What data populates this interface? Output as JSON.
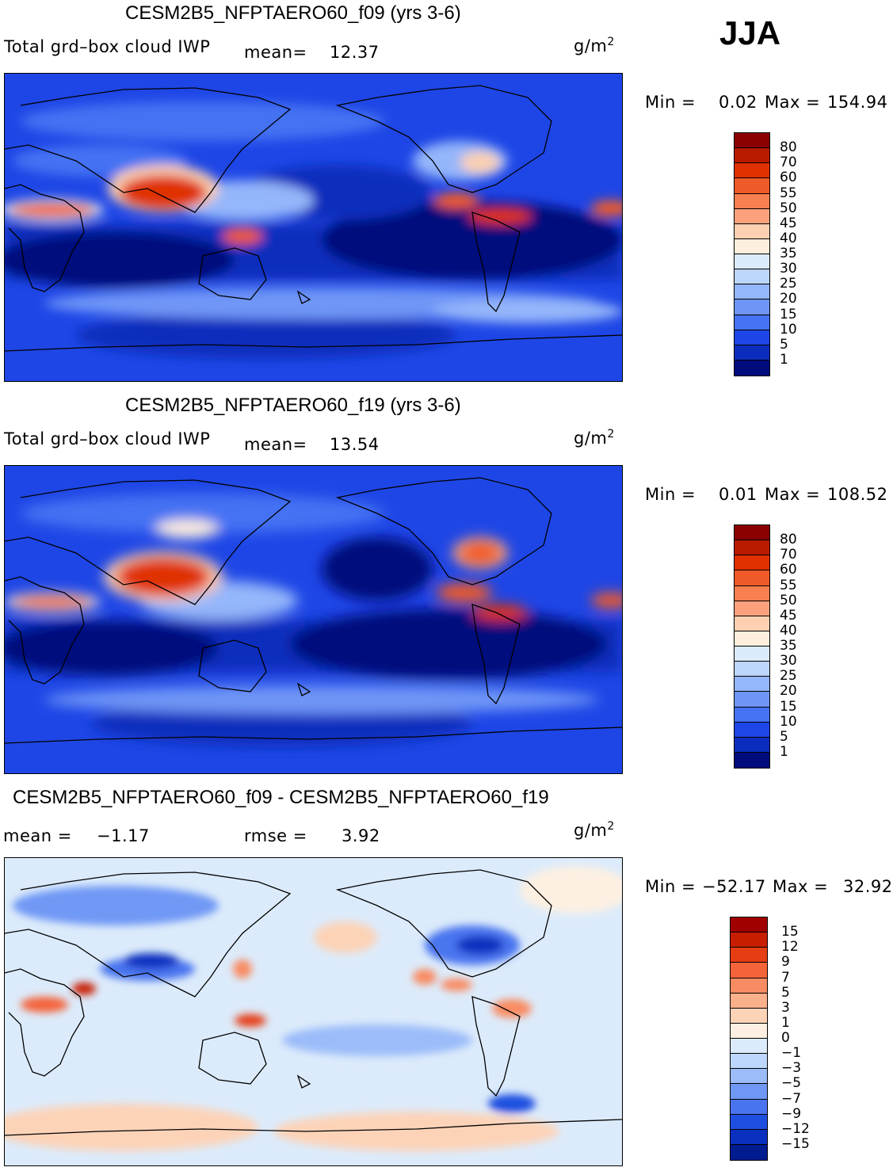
{
  "season": "JJA",
  "units_base": "g/m",
  "units_exp": "2",
  "panels": [
    {
      "title": "CESM2B5_NFPTAERO60_f09 (yrs 3-6)",
      "variable": "Total grd–box cloud IWP",
      "mean_label": "mean=",
      "mean_value": "12.37",
      "min_label": "Min =",
      "min_value": "0.02",
      "max_label": "Max =",
      "max_value": "154.94",
      "colorbar": {
        "levels": [
          "80",
          "70",
          "60",
          "55",
          "50",
          "45",
          "40",
          "35",
          "30",
          "25",
          "20",
          "15",
          "10",
          "5",
          "1"
        ],
        "colors": [
          "#8b0000",
          "#b81a00",
          "#e03000",
          "#f05a28",
          "#f88050",
          "#fba27c",
          "#fcd0b0",
          "#fdeedd",
          "#dcebfb",
          "#bcd5fb",
          "#94b6fa",
          "#6f96f7",
          "#4572f3",
          "#1e46e6",
          "#0b2dbd",
          "#000c7c"
        ]
      }
    },
    {
      "title": "CESM2B5_NFPTAERO60_f19 (yrs 3-6)",
      "variable": "Total grd–box cloud IWP",
      "mean_label": "mean=",
      "mean_value": "13.54",
      "min_label": "Min =",
      "min_value": "0.01",
      "max_label": "Max =",
      "max_value": "108.52",
      "colorbar": {
        "levels": [
          "80",
          "70",
          "60",
          "55",
          "50",
          "45",
          "40",
          "35",
          "30",
          "25",
          "20",
          "15",
          "10",
          "5",
          "1"
        ],
        "colors": [
          "#8b0000",
          "#b81a00",
          "#e03000",
          "#f05a28",
          "#f88050",
          "#fba27c",
          "#fcd0b0",
          "#fdeedd",
          "#dcebfb",
          "#bcd5fb",
          "#94b6fa",
          "#6f96f7",
          "#4572f3",
          "#1e46e6",
          "#0b2dbd",
          "#000c7c"
        ]
      }
    },
    {
      "title": "CESM2B5_NFPTAERO60_f09 - CESM2B5_NFPTAERO60_f19",
      "mean_label": "mean =",
      "mean_value": "−1.17",
      "rmse_label": "rmse =",
      "rmse_value": "3.92",
      "min_label": "Min =",
      "min_value": "−52.17",
      "max_label": "Max =",
      "max_value": "32.92",
      "colorbar": {
        "levels": [
          "15",
          "12",
          "9",
          "7",
          "5",
          "3",
          "1",
          "0",
          "−1",
          "−3",
          "−5",
          "−7",
          "−9",
          "−12",
          "−15"
        ],
        "colors": [
          "#a00000",
          "#c81e00",
          "#e63d14",
          "#f4643a",
          "#f98b62",
          "#fbb08c",
          "#fdd3b8",
          "#fdf0e2",
          "#dcebfb",
          "#bdd6fb",
          "#9bbcf9",
          "#6f98f5",
          "#4a74ef",
          "#1f4fe0",
          "#0a30c0",
          "#001c8f"
        ]
      }
    }
  ]
}
